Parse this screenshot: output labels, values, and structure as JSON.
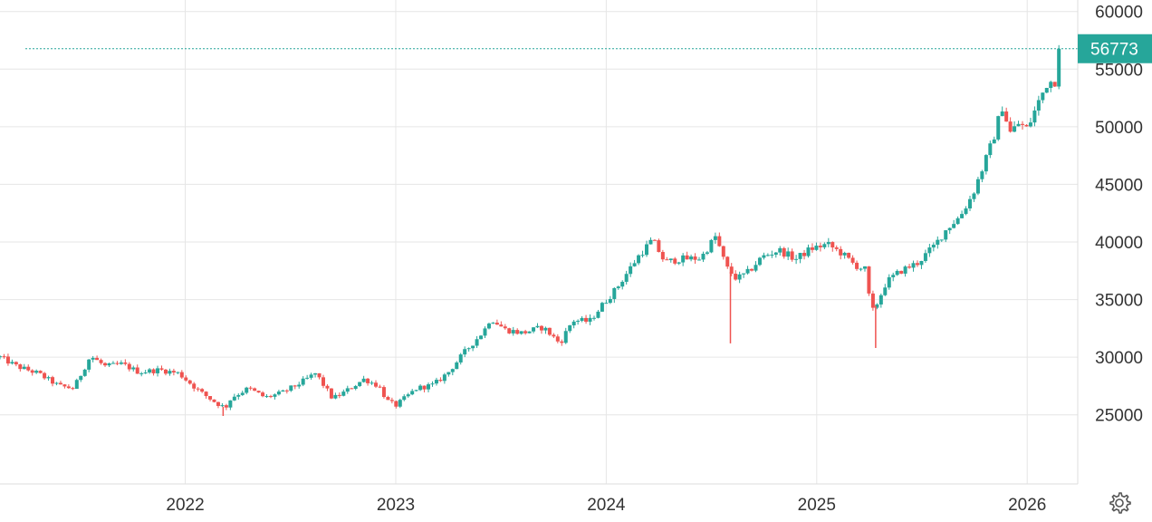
{
  "chart_data": {
    "type": "candlestick",
    "last_price": 56773,
    "last_price_label": "56773",
    "ylim": [
      19000,
      61000
    ],
    "y_ticks": [
      25000,
      30000,
      35000,
      40000,
      45000,
      50000,
      55000,
      60000
    ],
    "y_tick_labels": [
      "25000",
      "30000",
      "35000",
      "40000",
      "45000",
      "50000",
      "55000",
      "60000"
    ],
    "x_range": [
      2021.12,
      2026.24
    ],
    "x_ticks": [
      2022,
      2023,
      2024,
      2025,
      2026
    ],
    "x_tick_labels": [
      "2022",
      "2023",
      "2024",
      "2025",
      "2026"
    ],
    "grid": true,
    "up_color": "#26a69a",
    "down_color": "#ef5350",
    "price_label_color": "#26a69a",
    "path": [
      [
        2021.12,
        30000
      ],
      [
        2021.2,
        29200
      ],
      [
        2021.3,
        28600
      ],
      [
        2021.4,
        27500
      ],
      [
        2021.47,
        27300
      ],
      [
        2021.55,
        30100
      ],
      [
        2021.62,
        29200
      ],
      [
        2021.7,
        29400
      ],
      [
        2021.78,
        28700
      ],
      [
        2021.88,
        28900
      ],
      [
        2021.97,
        28600
      ],
      [
        2022.07,
        27000
      ],
      [
        2022.15,
        26000
      ],
      [
        2022.19,
        25600
      ],
      [
        2022.22,
        26500
      ],
      [
        2022.3,
        27300
      ],
      [
        2022.38,
        26500
      ],
      [
        2022.46,
        26900
      ],
      [
        2022.55,
        27800
      ],
      [
        2022.62,
        28600
      ],
      [
        2022.7,
        26400
      ],
      [
        2022.75,
        26900
      ],
      [
        2022.85,
        28100
      ],
      [
        2022.92,
        27500
      ],
      [
        2022.96,
        26200
      ],
      [
        2023.0,
        25800
      ],
      [
        2023.04,
        26400
      ],
      [
        2023.1,
        27300
      ],
      [
        2023.18,
        27600
      ],
      [
        2023.25,
        28700
      ],
      [
        2023.33,
        30500
      ],
      [
        2023.42,
        32300
      ],
      [
        2023.45,
        33400
      ],
      [
        2023.52,
        32400
      ],
      [
        2023.6,
        32100
      ],
      [
        2023.7,
        32600
      ],
      [
        2023.78,
        31200
      ],
      [
        2023.84,
        33200
      ],
      [
        2023.92,
        33100
      ],
      [
        2023.98,
        34500
      ],
      [
        2024.05,
        36000
      ],
      [
        2024.15,
        38700
      ],
      [
        2024.22,
        40200
      ],
      [
        2024.28,
        38200
      ],
      [
        2024.34,
        38500
      ],
      [
        2024.45,
        38600
      ],
      [
        2024.52,
        40500
      ],
      [
        2024.57,
        37800
      ],
      [
        2024.62,
        36800
      ],
      [
        2024.67,
        37300
      ],
      [
        2024.74,
        38700
      ],
      [
        2024.82,
        39300
      ],
      [
        2024.9,
        38500
      ],
      [
        2024.97,
        39400
      ],
      [
        2025.05,
        39800
      ],
      [
        2025.12,
        39000
      ],
      [
        2025.18,
        38000
      ],
      [
        2025.23,
        37600
      ],
      [
        2025.26,
        33800
      ],
      [
        2025.29,
        34800
      ],
      [
        2025.33,
        36500
      ],
      [
        2025.4,
        37500
      ],
      [
        2025.48,
        38200
      ],
      [
        2025.56,
        39700
      ],
      [
        2025.62,
        41200
      ],
      [
        2025.68,
        42200
      ],
      [
        2025.74,
        44100
      ],
      [
        2025.8,
        47000
      ],
      [
        2025.84,
        49000
      ],
      [
        2025.88,
        51800
      ],
      [
        2025.92,
        49500
      ],
      [
        2025.96,
        50300
      ],
      [
        2026.0,
        49800
      ],
      [
        2026.05,
        52000
      ],
      [
        2026.1,
        54000
      ],
      [
        2026.13,
        53800
      ],
      [
        2026.155,
        56773
      ]
    ],
    "spikes": [
      {
        "x": 2024.59,
        "low": 31200
      },
      {
        "x": 2025.28,
        "low": 30800
      },
      {
        "x": 2022.18,
        "low": 24900
      }
    ]
  },
  "ui": {
    "settings_icon": "gear-icon"
  }
}
